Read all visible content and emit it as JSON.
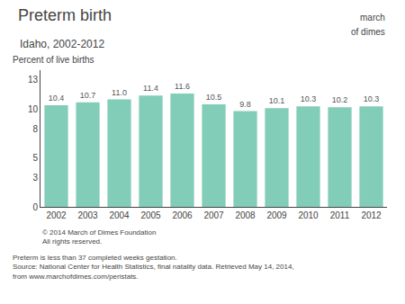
{
  "chart_data": {
    "type": "bar",
    "title": "Preterm birth",
    "subtitle": "Idaho, 2002-2012",
    "ylabel": "Percent of live births",
    "categories": [
      "2002",
      "2003",
      "2004",
      "2005",
      "2006",
      "2007",
      "2008",
      "2009",
      "2010",
      "2011",
      "2012"
    ],
    "values": [
      10.4,
      10.7,
      11.0,
      11.4,
      11.6,
      10.5,
      9.8,
      10.1,
      10.3,
      10.2,
      10.3
    ],
    "value_labels": [
      "10.4",
      "10.7",
      "11.0",
      "11.4",
      "11.6",
      "10.5",
      "9.8",
      "10.1",
      "10.3",
      "10.2",
      "10.3"
    ],
    "data_labels": true,
    "color": "#82CDB8",
    "ylim": [
      0,
      14
    ],
    "yticks": [
      0,
      3,
      5,
      8,
      10,
      13
    ],
    "grid": false,
    "annotations": [
      "© 2014 March of Dimes Foundation\nAll rights reserved.",
      "Preterm is less than 37 completed weeks gestation.\nSource: National Center for Health Statistics, final natality data. Retrieved May 14, 2014,\nfrom www.marchofdimes.com/peristats.",
      "march",
      "of dimes"
    ]
  }
}
